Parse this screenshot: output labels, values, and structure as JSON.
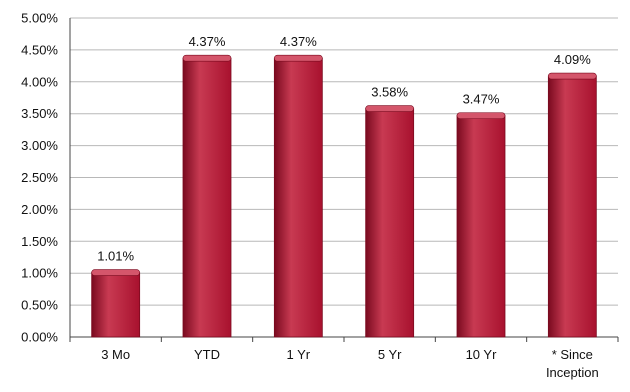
{
  "chart_data": {
    "type": "bar",
    "categories": [
      "3 Mo",
      "YTD",
      "1 Yr",
      "5 Yr",
      "10 Yr",
      "* Since Inception"
    ],
    "category_lines": [
      [
        "3 Mo"
      ],
      [
        "YTD"
      ],
      [
        "1 Yr"
      ],
      [
        "5 Yr"
      ],
      [
        "10 Yr"
      ],
      [
        "* Since",
        "Inception"
      ]
    ],
    "values": [
      1.01,
      4.37,
      4.37,
      3.58,
      3.47,
      4.09
    ],
    "data_labels": [
      "1.01%",
      "4.37%",
      "4.37%",
      "3.58%",
      "3.47%",
      "4.09%"
    ],
    "yticks": [
      0,
      0.5,
      1,
      1.5,
      2,
      2.5,
      3,
      3.5,
      4,
      4.5,
      5
    ],
    "ytick_labels": [
      "0.00%",
      "0.50%",
      "1.00%",
      "1.50%",
      "2.00%",
      "2.50%",
      "3.00%",
      "3.50%",
      "4.00%",
      "4.50%",
      "5.00%"
    ],
    "ylim": [
      0,
      5
    ],
    "grid": true,
    "legend": "none",
    "title": "",
    "xlabel": "",
    "ylabel": "",
    "colors": {
      "bar": "#a8112e",
      "bar_light": "#c83a52",
      "bar_dark": "#7a0a1f",
      "bar_top": "#d4566b",
      "grid": "#b8b8b8",
      "axis": "#444444"
    }
  }
}
